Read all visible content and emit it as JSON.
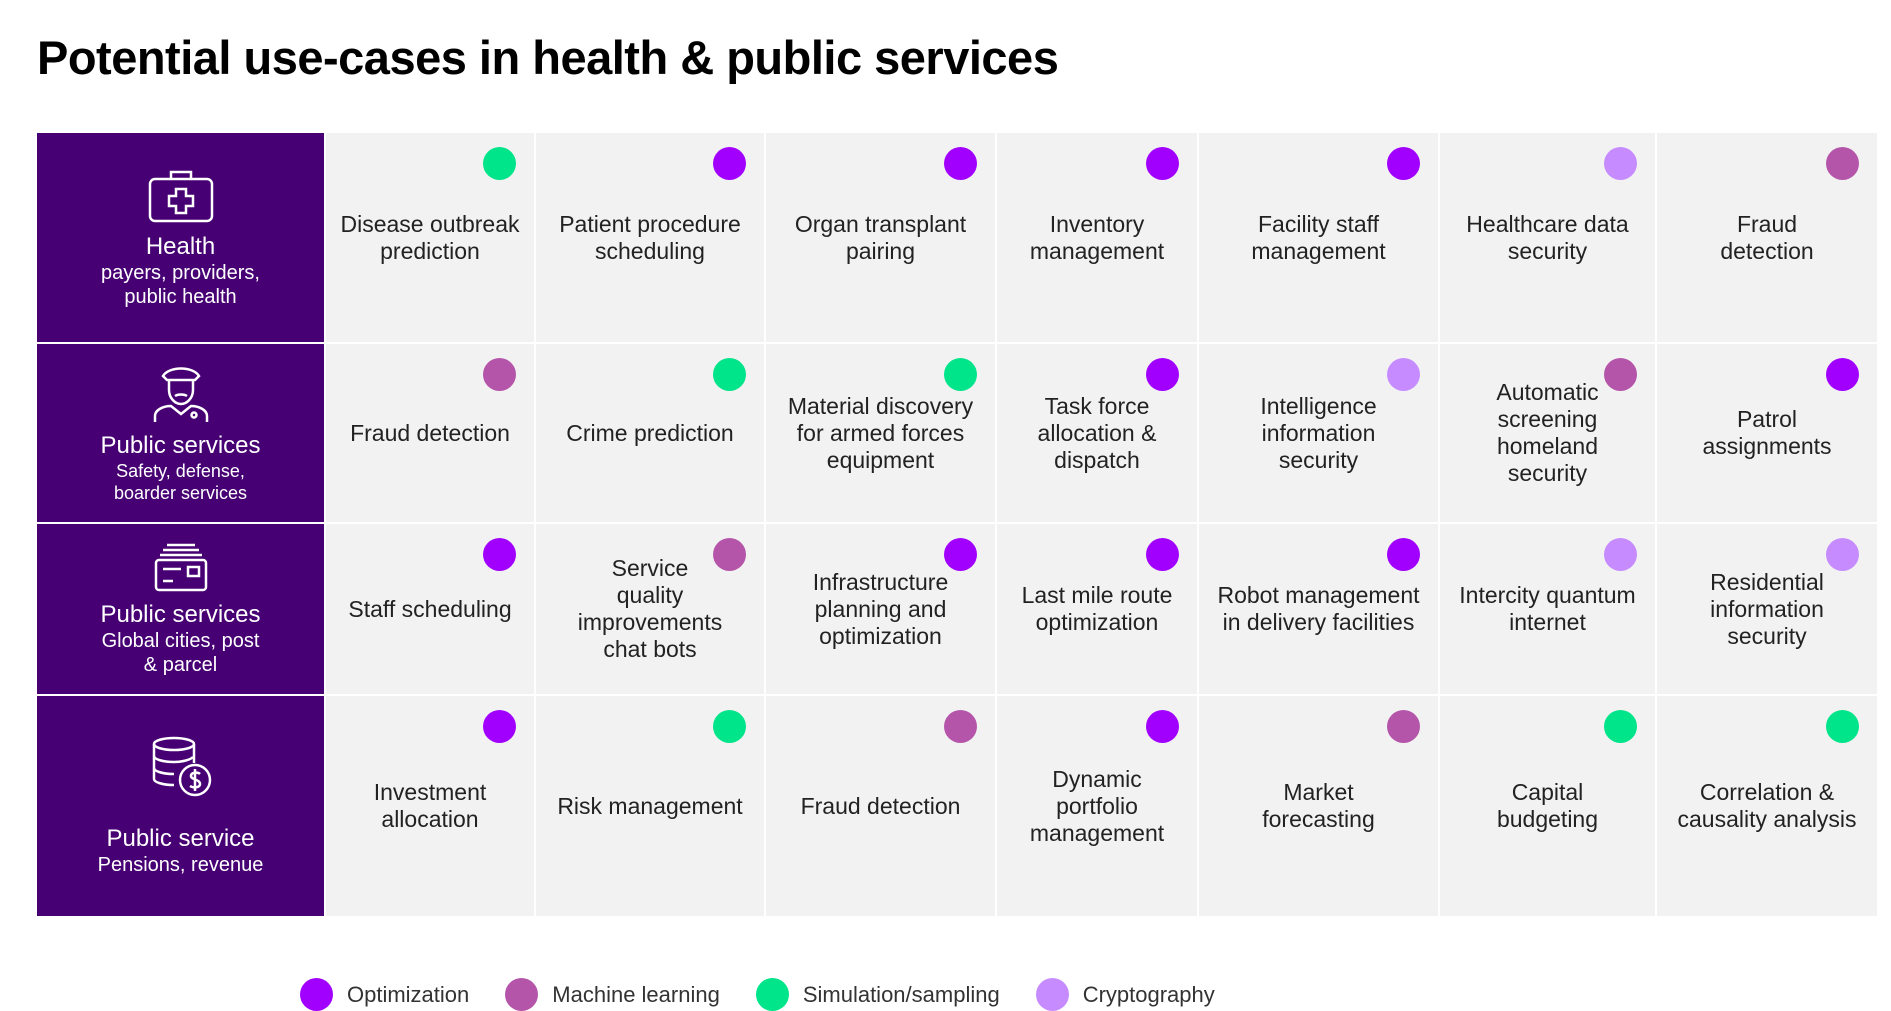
{
  "title": "Potential use-cases in health & public services",
  "colors": {
    "optimization": "#a100ff",
    "machine_learning": "#b455aa",
    "simulation": "#00e48a",
    "cryptography": "#c68cff",
    "header_bg": "#460073",
    "cell_bg": "#f2f2f2"
  },
  "rows": [
    {
      "icon": "medical-kit-icon",
      "title": "Health",
      "subtitle": "payers, providers,\npublic health",
      "cells": [
        {
          "label": "Disease outbreak\nprediction",
          "category": "simulation"
        },
        {
          "label": "Patient procedure\nscheduling",
          "category": "optimization"
        },
        {
          "label": "Organ transplant\npairing",
          "category": "optimization"
        },
        {
          "label": "Inventory\nmanagement",
          "category": "optimization"
        },
        {
          "label": "Facility staff\nmanagement",
          "category": "optimization"
        },
        {
          "label": "Healthcare data\nsecurity",
          "category": "cryptography"
        },
        {
          "label": "Fraud\ndetection",
          "category": "machine_learning"
        }
      ]
    },
    {
      "icon": "officer-icon",
      "title": "Public services",
      "subtitle": "Safety, defense,\nboarder services",
      "cells": [
        {
          "label": "Fraud detection",
          "category": "machine_learning"
        },
        {
          "label": "Crime prediction",
          "category": "simulation"
        },
        {
          "label": "Material discovery\nfor armed forces\nequipment",
          "category": "simulation"
        },
        {
          "label": "Task force\nallocation &\ndispatch",
          "category": "optimization"
        },
        {
          "label": "Intelligence\ninformation\nsecurity",
          "category": "cryptography"
        },
        {
          "label": "Automatic\nscreening\nhomeland\nsecurity",
          "category": "machine_learning"
        },
        {
          "label": "Patrol\nassignments",
          "category": "optimization"
        }
      ]
    },
    {
      "icon": "mail-parcel-icon",
      "title": "Public services",
      "subtitle": "Global cities, post\n& parcel",
      "cells": [
        {
          "label": "Staff scheduling",
          "category": "optimization"
        },
        {
          "label": "Service\nquality\nimprovements\nchat bots",
          "category": "machine_learning"
        },
        {
          "label": "Infrastructure\nplanning and\noptimization",
          "category": "optimization"
        },
        {
          "label": "Last mile route\noptimization",
          "category": "optimization"
        },
        {
          "label": "Robot management\nin delivery facilities",
          "category": "optimization"
        },
        {
          "label": "Intercity quantum\ninternet",
          "category": "cryptography"
        },
        {
          "label": "Residential\ninformation\nsecurity",
          "category": "cryptography"
        }
      ]
    },
    {
      "icon": "coins-dollar-icon",
      "title": "Public service",
      "subtitle": "Pensions, revenue",
      "cells": [
        {
          "label": "Investment\nallocation",
          "category": "optimization"
        },
        {
          "label": "Risk management",
          "category": "simulation"
        },
        {
          "label": "Fraud detection",
          "category": "machine_learning"
        },
        {
          "label": "Dynamic\nportfolio\nmanagement",
          "category": "optimization"
        },
        {
          "label": "Market\nforecasting",
          "category": "machine_learning"
        },
        {
          "label": "Capital\nbudgeting",
          "category": "simulation"
        },
        {
          "label": "Correlation &\ncausality analysis",
          "category": "simulation"
        }
      ]
    }
  ],
  "legend": [
    {
      "key": "optimization",
      "label": "Optimization"
    },
    {
      "key": "machine_learning",
      "label": "Machine learning"
    },
    {
      "key": "simulation",
      "label": "Simulation/sampling"
    },
    {
      "key": "cryptography",
      "label": "Cryptography"
    }
  ]
}
